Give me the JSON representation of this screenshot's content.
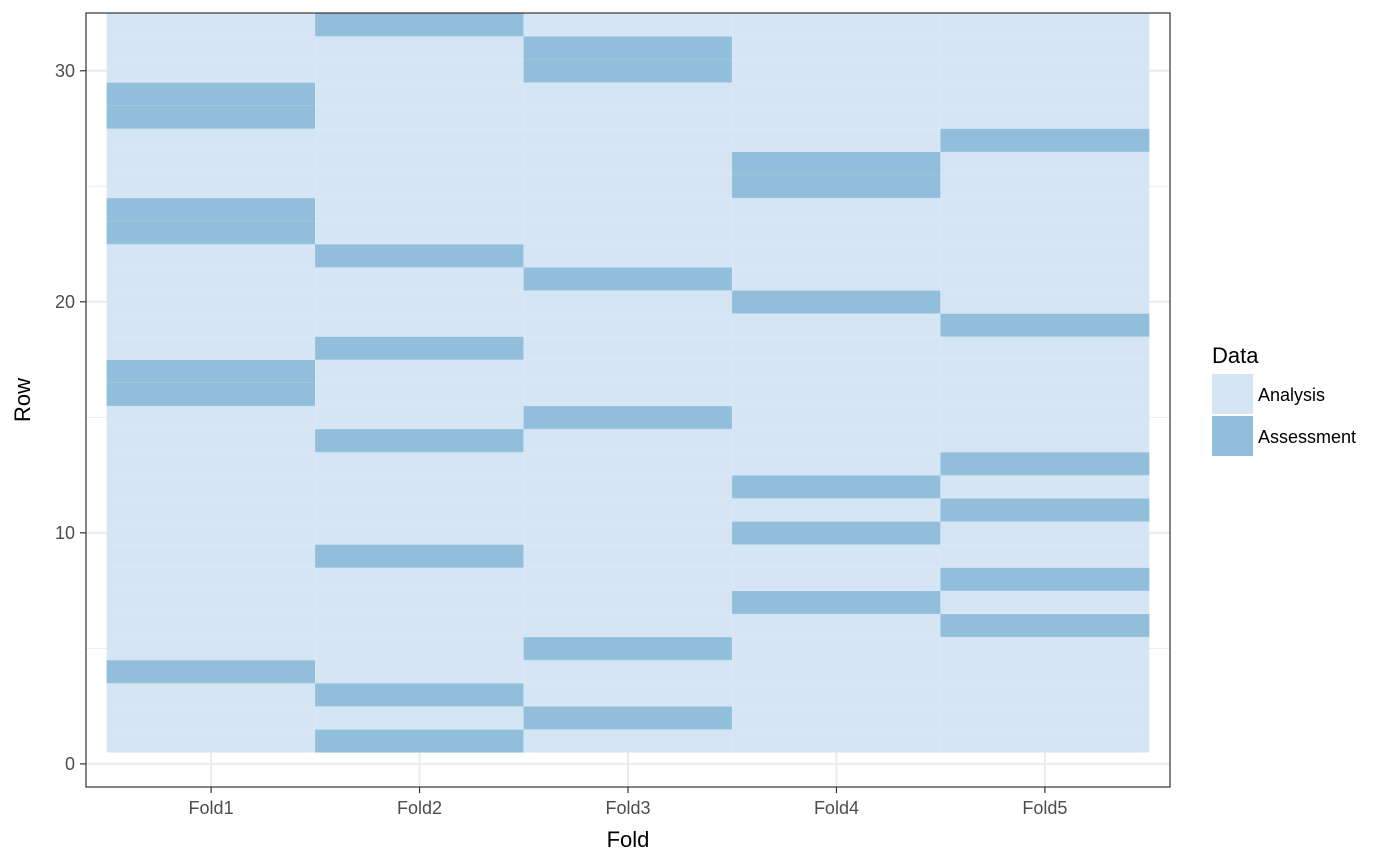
{
  "chart_data": {
    "type": "heatmap",
    "xlabel": "Fold",
    "ylabel": "Row",
    "categories": [
      "Fold1",
      "Fold2",
      "Fold3",
      "Fold4",
      "Fold5"
    ],
    "rows": 32,
    "ylim": [
      -1,
      32.5
    ],
    "yticks": [
      0,
      10,
      20,
      30
    ],
    "grid": true,
    "legend": {
      "title": "Data",
      "position": "right",
      "entries": [
        "Analysis",
        "Assessment"
      ]
    },
    "colors": {
      "Analysis": "#d6e5f4",
      "Assessment": "#91bfdb",
      "grid": "#ebebeb",
      "panel_border": "#333333"
    },
    "assessment_rows": {
      "Fold1": [
        4,
        16,
        17,
        23,
        24,
        28,
        29
      ],
      "Fold2": [
        1,
        3,
        9,
        14,
        18,
        22,
        32
      ],
      "Fold3": [
        2,
        5,
        15,
        21,
        30,
        31
      ],
      "Fold4": [
        7,
        10,
        12,
        20,
        25,
        26
      ],
      "Fold5": [
        6,
        8,
        11,
        13,
        19,
        27
      ]
    }
  }
}
